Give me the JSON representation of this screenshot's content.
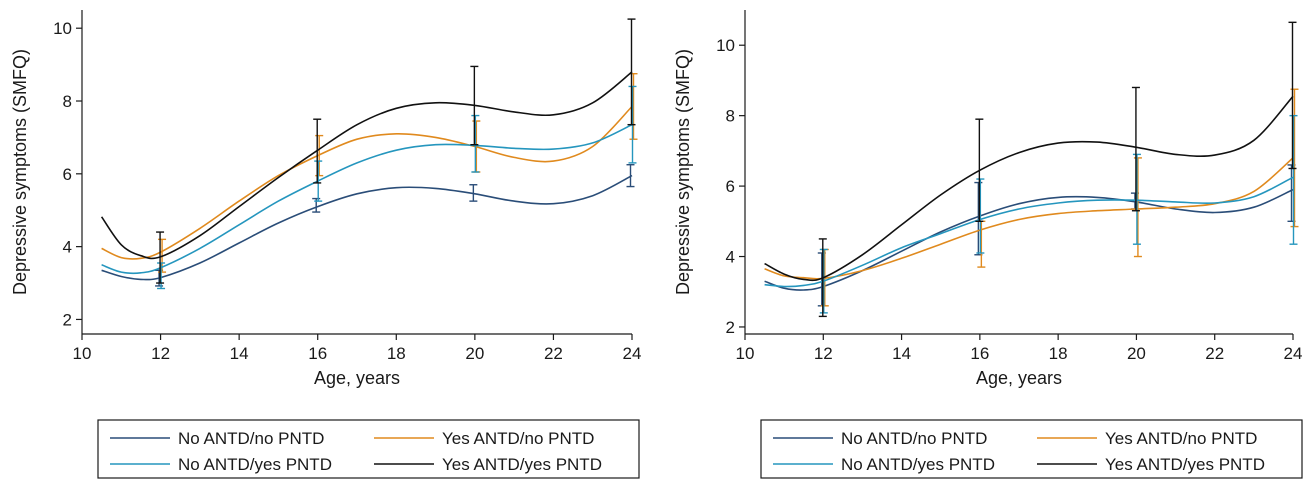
{
  "colors": {
    "No ANTD/no PNTD": "#2a4d78",
    "Yes ANTD/no PNTD": "#e08a1e",
    "No ANTD/yes PNTD": "#2596be",
    "Yes ANTD/yes PNTD": "#111111"
  },
  "chart_data": [
    {
      "type": "line",
      "xlabel": "Age, years",
      "ylabel": "Depressive symptoms (SMFQ)",
      "xlim": [
        10,
        24
      ],
      "ylim": [
        1.6,
        10.5
      ],
      "xticks": [
        10,
        12,
        14,
        16,
        18,
        20,
        22,
        24
      ],
      "yticks": [
        2,
        4,
        6,
        8,
        10
      ],
      "grid": false,
      "legend": "below",
      "legend_labels": [
        "No ANTD/no PNTD",
        "Yes ANTD/no PNTD",
        "No ANTD/yes PNTD",
        "Yes ANTD/yes PNTD"
      ],
      "series": [
        {
          "name": "No ANTD/no PNTD",
          "x": [
            10.5,
            11,
            11.5,
            12,
            13,
            14,
            15,
            16,
            17,
            18,
            19,
            20,
            21,
            22,
            23,
            24
          ],
          "y": [
            3.35,
            3.18,
            3.1,
            3.15,
            3.55,
            4.1,
            4.65,
            5.1,
            5.45,
            5.62,
            5.6,
            5.45,
            5.25,
            5.18,
            5.4,
            5.95
          ],
          "errors": [
            {
              "x": 12,
              "low": 2.92,
              "high": 3.35
            },
            {
              "x": 16,
              "low": 4.95,
              "high": 5.32
            },
            {
              "x": 20,
              "low": 5.25,
              "high": 5.7
            },
            {
              "x": 24,
              "low": 5.65,
              "high": 6.25
            }
          ]
        },
        {
          "name": "Yes ANTD/no PNTD",
          "x": [
            10.5,
            11,
            11.5,
            12,
            13,
            14,
            15,
            16,
            17,
            18,
            19,
            20,
            21,
            22,
            23,
            24
          ],
          "y": [
            3.95,
            3.7,
            3.68,
            3.85,
            4.5,
            5.25,
            5.95,
            6.5,
            6.95,
            7.1,
            7.0,
            6.75,
            6.45,
            6.35,
            6.75,
            7.85
          ],
          "errors": [
            {
              "x": 12,
              "low": 3.3,
              "high": 4.2
            },
            {
              "x": 16,
              "low": 5.95,
              "high": 7.05
            },
            {
              "x": 20,
              "low": 6.05,
              "high": 7.45
            },
            {
              "x": 24,
              "low": 6.95,
              "high": 8.75
            }
          ]
        },
        {
          "name": "No ANTD/yes PNTD",
          "x": [
            10.5,
            11,
            11.5,
            12,
            13,
            14,
            15,
            16,
            17,
            18,
            19,
            20,
            21,
            22,
            23,
            24
          ],
          "y": [
            3.5,
            3.3,
            3.28,
            3.42,
            3.95,
            4.6,
            5.25,
            5.8,
            6.3,
            6.65,
            6.8,
            6.78,
            6.7,
            6.68,
            6.85,
            7.35
          ],
          "errors": [
            {
              "x": 12,
              "low": 2.85,
              "high": 3.55
            },
            {
              "x": 16,
              "low": 5.25,
              "high": 6.35
            },
            {
              "x": 20,
              "low": 6.05,
              "high": 7.6
            },
            {
              "x": 24,
              "low": 6.3,
              "high": 8.4
            }
          ]
        },
        {
          "name": "Yes ANTD/yes PNTD",
          "x": [
            10.5,
            11,
            11.5,
            12,
            13,
            14,
            15,
            16,
            17,
            18,
            19,
            20,
            21,
            22,
            23,
            24
          ],
          "y": [
            4.82,
            4.05,
            3.75,
            3.72,
            4.3,
            5.1,
            5.9,
            6.65,
            7.35,
            7.8,
            7.95,
            7.88,
            7.7,
            7.62,
            7.95,
            8.8
          ],
          "errors": [
            {
              "x": 12,
              "low": 3.0,
              "high": 4.4
            },
            {
              "x": 16,
              "low": 5.75,
              "high": 7.5
            },
            {
              "x": 20,
              "low": 6.8,
              "high": 8.95
            },
            {
              "x": 24,
              "low": 7.35,
              "high": 10.25
            }
          ]
        }
      ]
    },
    {
      "type": "line",
      "xlabel": "Age, years",
      "ylabel": "Depressive symptoms (SMFQ)",
      "xlim": [
        10,
        24
      ],
      "ylim": [
        1.8,
        11
      ],
      "xticks": [
        10,
        12,
        14,
        16,
        18,
        20,
        22,
        24
      ],
      "yticks": [
        2,
        4,
        6,
        8,
        10
      ],
      "grid": false,
      "legend": "below",
      "legend_labels": [
        "No ANTD/no PNTD",
        "Yes ANTD/no PNTD",
        "No ANTD/yes PNTD",
        "Yes ANTD/yes PNTD"
      ],
      "series": [
        {
          "name": "No ANTD/no PNTD",
          "x": [
            10.5,
            11,
            11.5,
            12,
            13,
            14,
            15,
            16,
            17,
            18,
            19,
            20,
            21,
            22,
            23,
            24
          ],
          "y": [
            3.3,
            3.1,
            3.05,
            3.15,
            3.6,
            4.15,
            4.7,
            5.15,
            5.5,
            5.68,
            5.68,
            5.55,
            5.35,
            5.25,
            5.4,
            5.9
          ],
          "errors": [
            {
              "x": 12,
              "low": 2.6,
              "high": 4.1
            },
            {
              "x": 16,
              "low": 4.05,
              "high": 6.1
            },
            {
              "x": 20,
              "low": 5.35,
              "high": 5.8
            },
            {
              "x": 24,
              "low": 5.0,
              "high": 6.6
            }
          ]
        },
        {
          "name": "Yes ANTD/no PNTD",
          "x": [
            10.5,
            11,
            11.5,
            12,
            13,
            14,
            15,
            16,
            17,
            18,
            19,
            20,
            21,
            22,
            23,
            24
          ],
          "y": [
            3.65,
            3.45,
            3.4,
            3.38,
            3.6,
            3.95,
            4.35,
            4.75,
            5.05,
            5.22,
            5.3,
            5.35,
            5.4,
            5.5,
            5.85,
            6.8
          ],
          "errors": [
            {
              "x": 12,
              "low": 2.6,
              "high": 4.2
            },
            {
              "x": 16,
              "low": 3.7,
              "high": 5.0
            },
            {
              "x": 20,
              "low": 4.0,
              "high": 6.8
            },
            {
              "x": 24,
              "low": 4.85,
              "high": 8.75
            }
          ]
        },
        {
          "name": "No ANTD/yes PNTD",
          "x": [
            10.5,
            11,
            11.5,
            12,
            13,
            14,
            15,
            16,
            17,
            18,
            19,
            20,
            21,
            22,
            23,
            24
          ],
          "y": [
            3.2,
            3.15,
            3.18,
            3.3,
            3.75,
            4.25,
            4.65,
            5.05,
            5.35,
            5.52,
            5.6,
            5.6,
            5.55,
            5.52,
            5.7,
            6.25
          ],
          "errors": [
            {
              "x": 12,
              "low": 2.4,
              "high": 4.2
            },
            {
              "x": 16,
              "low": 4.1,
              "high": 6.2
            },
            {
              "x": 20,
              "low": 4.35,
              "high": 6.9
            },
            {
              "x": 24,
              "low": 4.35,
              "high": 8.0
            }
          ]
        },
        {
          "name": "Yes ANTD/yes PNTD",
          "x": [
            10.5,
            11,
            11.5,
            12,
            13,
            14,
            15,
            16,
            17,
            18,
            19,
            20,
            21,
            22,
            23,
            24
          ],
          "y": [
            3.8,
            3.5,
            3.35,
            3.4,
            4.05,
            4.9,
            5.75,
            6.45,
            6.95,
            7.22,
            7.25,
            7.1,
            6.9,
            6.88,
            7.3,
            8.55
          ],
          "errors": [
            {
              "x": 12,
              "low": 2.3,
              "high": 4.5
            },
            {
              "x": 16,
              "low": 5.0,
              "high": 7.9
            },
            {
              "x": 20,
              "low": 5.3,
              "high": 8.8
            },
            {
              "x": 24,
              "low": 6.5,
              "high": 10.65
            }
          ]
        }
      ]
    }
  ]
}
